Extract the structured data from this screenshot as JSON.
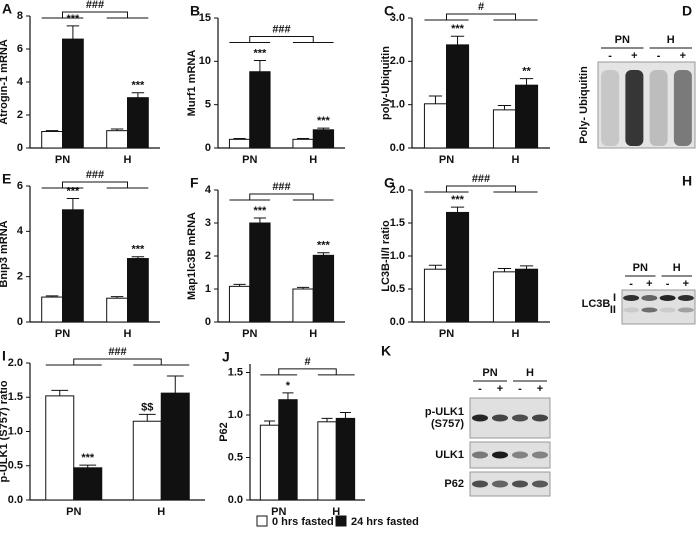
{
  "legend": [
    {
      "name": "0 hrs fasted",
      "color": "#ffffff"
    },
    {
      "name": "24 hrs fasted",
      "color": "#111111"
    }
  ],
  "chart_data": [
    {
      "type": "bar",
      "panel": "A",
      "ylabel": "Atrogin-1 mRNA",
      "categories": [
        "PN",
        "H"
      ],
      "ylim": [
        0,
        8
      ],
      "yticks": [
        0,
        2,
        4,
        6,
        8
      ],
      "series": [
        {
          "values": [
            1.0,
            1.05
          ],
          "errors": [
            0.05,
            0.1
          ]
        },
        {
          "values": [
            6.6,
            3.05
          ],
          "errors": [
            0.8,
            0.3
          ]
        }
      ],
      "annotations": [
        {
          "text": "***",
          "series": 1,
          "category": 0
        },
        {
          "text": "***",
          "series": 1,
          "category": 1
        }
      ],
      "comparison": "###"
    },
    {
      "type": "bar",
      "panel": "B",
      "ylabel": "Murf1 mRNA",
      "categories": [
        "PN",
        "H"
      ],
      "ylim": [
        0,
        15
      ],
      "yticks": [
        0,
        5,
        10,
        15
      ],
      "series": [
        {
          "values": [
            1.0,
            1.0
          ],
          "errors": [
            0.1,
            0.1
          ]
        },
        {
          "values": [
            8.8,
            2.1
          ],
          "errors": [
            1.3,
            0.2
          ]
        }
      ],
      "annotations": [
        {
          "text": "***",
          "series": 1,
          "category": 0
        },
        {
          "text": "***",
          "series": 1,
          "category": 1
        }
      ],
      "comparison": "###"
    },
    {
      "type": "bar",
      "panel": "C",
      "ylabel": "poly-Ubiquitin",
      "categories": [
        "PN",
        "H"
      ],
      "ylim": [
        0,
        3
      ],
      "yticks": [
        {
          "value": 0,
          "label": "0.0"
        },
        {
          "value": 1,
          "label": "1.0"
        },
        {
          "value": 2,
          "label": "2.0"
        },
        {
          "value": 3,
          "label": "3.0"
        }
      ],
      "series": [
        {
          "values": [
            1.02,
            0.88
          ],
          "errors": [
            0.18,
            0.1
          ]
        },
        {
          "values": [
            2.38,
            1.45
          ],
          "errors": [
            0.2,
            0.15
          ]
        }
      ],
      "annotations": [
        {
          "text": "***",
          "series": 1,
          "category": 0
        },
        {
          "text": "**",
          "series": 1,
          "category": 1
        }
      ],
      "comparison": "#"
    },
    {
      "type": "bar",
      "panel": "E",
      "ylabel": "Bnip3 mRNA",
      "categories": [
        "PN",
        "H"
      ],
      "ylim": [
        0,
        6
      ],
      "yticks": [
        0,
        2,
        4,
        6
      ],
      "series": [
        {
          "values": [
            1.1,
            1.05
          ],
          "errors": [
            0.05,
            0.07
          ]
        },
        {
          "values": [
            4.95,
            2.8
          ],
          "errors": [
            0.5,
            0.08
          ]
        }
      ],
      "annotations": [
        {
          "text": "***",
          "series": 1,
          "category": 0
        },
        {
          "text": "***",
          "series": 1,
          "category": 1
        }
      ],
      "comparison": "###"
    },
    {
      "type": "bar",
      "panel": "F",
      "ylabel": "Map1lc3B mRNA",
      "categories": [
        "PN",
        "H"
      ],
      "ylim": [
        0,
        4
      ],
      "yticks": [
        0,
        1,
        2,
        3,
        4
      ],
      "series": [
        {
          "values": [
            1.08,
            1.0
          ],
          "errors": [
            0.06,
            0.05
          ]
        },
        {
          "values": [
            3.0,
            2.02
          ],
          "errors": [
            0.15,
            0.08
          ]
        }
      ],
      "annotations": [
        {
          "text": "***",
          "series": 1,
          "category": 0
        },
        {
          "text": "***",
          "series": 1,
          "category": 1
        }
      ],
      "comparison": "###"
    },
    {
      "type": "bar",
      "panel": "G",
      "ylabel": "LC3B-II/I ratio",
      "categories": [
        "PN",
        "H"
      ],
      "ylim": [
        0,
        2
      ],
      "yticks": [
        {
          "value": 0,
          "label": "0.0"
        },
        0.5,
        {
          "value": 1,
          "label": "1.0"
        },
        1.5,
        {
          "value": 2,
          "label": "2.0"
        }
      ],
      "series": [
        {
          "values": [
            0.8,
            0.76
          ],
          "errors": [
            0.06,
            0.05
          ]
        },
        {
          "values": [
            1.66,
            0.8
          ],
          "errors": [
            0.08,
            0.05
          ]
        }
      ],
      "annotations": [
        {
          "text": "***",
          "series": 1,
          "category": 0
        }
      ],
      "comparison": "###"
    },
    {
      "type": "bar",
      "panel": "I",
      "ylabel": "p-ULK1 (S757) ratio",
      "categories": [
        "PN",
        "H"
      ],
      "ylim": [
        0,
        2
      ],
      "yticks": [
        {
          "value": 0,
          "label": "0.0"
        },
        0.5,
        {
          "value": 1,
          "label": "1.0"
        },
        1.5,
        {
          "value": 2,
          "label": "2.0"
        }
      ],
      "series": [
        {
          "values": [
            1.52,
            1.15
          ],
          "errors": [
            0.08,
            0.1
          ]
        },
        {
          "values": [
            0.47,
            1.56
          ],
          "errors": [
            0.04,
            0.25
          ]
        }
      ],
      "annotations": [
        {
          "text": "***",
          "series": 1,
          "category": 0
        },
        {
          "text": "$$",
          "series": 0,
          "category": 1
        }
      ],
      "comparison": "###"
    },
    {
      "type": "bar",
      "panel": "J",
      "ylabel": "P62",
      "categories": [
        "PN",
        "H"
      ],
      "ylim": [
        0,
        1.6
      ],
      "yticks": [
        {
          "value": 0,
          "label": "0.0"
        },
        0.5,
        {
          "value": 1,
          "label": "1.0"
        },
        1.5
      ],
      "series": [
        {
          "values": [
            0.88,
            0.92
          ],
          "errors": [
            0.05,
            0.04
          ]
        },
        {
          "values": [
            1.18,
            0.96
          ],
          "errors": [
            0.08,
            0.07
          ]
        }
      ],
      "annotations": [
        {
          "text": "*",
          "series": 1,
          "category": 0
        }
      ],
      "comparison": "#"
    }
  ],
  "blots": [
    {
      "panel": "D",
      "groups": [
        "PN",
        "H"
      ],
      "lanes": [
        "-",
        "+",
        "-",
        "+"
      ],
      "label": "Poly- Ubiquitin"
    },
    {
      "panel": "H",
      "groups": [
        "PN",
        "H"
      ],
      "lanes": [
        "-",
        "+",
        "-",
        "+"
      ],
      "label": "LC3B",
      "bands": [
        "I",
        "II"
      ]
    },
    {
      "panel": "K",
      "groups": [
        "PN",
        "H"
      ],
      "lanes": [
        "-",
        "+",
        "-",
        "+"
      ],
      "rows": [
        [
          "p-ULK1",
          "(S757)"
        ],
        [
          "ULK1"
        ],
        [
          "P62"
        ]
      ]
    }
  ]
}
